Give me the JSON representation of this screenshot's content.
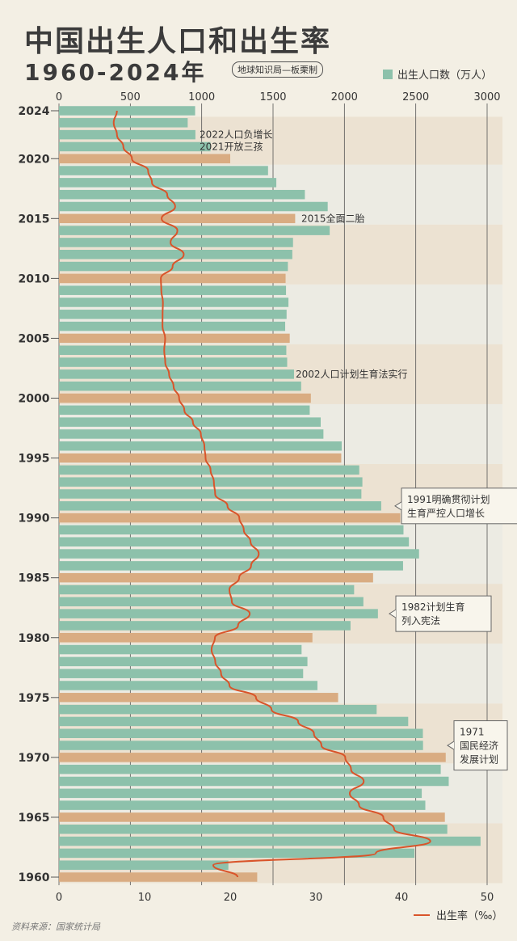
{
  "header": {
    "title": "中国出生人口和出生率",
    "subtitle": "1960-2024年",
    "credit": "地球知识局—板栗制",
    "legend_births": "出生人口数（万人）",
    "legend_rate": "出生率（‰）",
    "source": "资料来源：国家统计局"
  },
  "colors": {
    "background": "#f3efe4",
    "bar_normal": "#8dc1ab",
    "bar_highlight": "#d9ac82",
    "rate_line": "#d9542a",
    "band_light": "#ecebe3",
    "band_dark": "#ece2d2"
  },
  "chart_data": {
    "type": "bar",
    "orientation": "horizontal",
    "title": "中国出生人口和出生率",
    "years": [
      1960,
      1961,
      1962,
      1963,
      1964,
      1965,
      1966,
      1967,
      1968,
      1969,
      1970,
      1971,
      1972,
      1973,
      1974,
      1975,
      1976,
      1977,
      1978,
      1979,
      1980,
      1981,
      1982,
      1983,
      1984,
      1985,
      1986,
      1987,
      1988,
      1989,
      1990,
      1991,
      1992,
      1993,
      1994,
      1995,
      1996,
      1997,
      1998,
      1999,
      2000,
      2001,
      2002,
      2003,
      2004,
      2005,
      2006,
      2007,
      2008,
      2009,
      2010,
      2011,
      2012,
      2013,
      2014,
      2015,
      2016,
      2017,
      2018,
      2019,
      2020,
      2021,
      2022,
      2023,
      2024
    ],
    "highlight_years": [
      1960,
      1965,
      1970,
      1975,
      1980,
      1985,
      1990,
      1995,
      2000,
      2005,
      2010,
      2015,
      2020
    ],
    "series": [
      {
        "name": "出生人口数（万人）",
        "axis": "top",
        "values": [
          1389,
          1187,
          2491,
          2954,
          2721,
          2704,
          2567,
          2542,
          2731,
          2675,
          2710,
          2551,
          2550,
          2447,
          2226,
          1956,
          1811,
          1711,
          1741,
          1700,
          1776,
          2043,
          2235,
          2133,
          2068,
          2201,
          2411,
          2523,
          2452,
          2414,
          2391,
          2258,
          2119,
          2126,
          2104,
          1978,
          1981,
          1853,
          1834,
          1757,
          1765,
          1697,
          1647,
          1599,
          1593,
          1617,
          1585,
          1595,
          1608,
          1591,
          1588,
          1604,
          1635,
          1640,
          1897,
          1655,
          1883,
          1723,
          1523,
          1465,
          1200,
          1062,
          956,
          902,
          954
        ],
        "xlim": [
          0,
          3000
        ],
        "ticks": [
          0,
          500,
          1000,
          1500,
          2000,
          2500,
          3000
        ]
      },
      {
        "name": "出生率（‰）",
        "axis": "bottom",
        "values": [
          20.86,
          18.02,
          37.01,
          43.37,
          39.14,
          37.88,
          35.05,
          33.96,
          35.59,
          34.11,
          33.43,
          30.65,
          29.77,
          27.93,
          24.82,
          23.01,
          19.91,
          18.93,
          18.25,
          17.82,
          18.21,
          20.91,
          22.28,
          20.19,
          19.9,
          21.04,
          22.43,
          23.33,
          22.37,
          21.58,
          21.06,
          19.68,
          18.24,
          18.09,
          17.7,
          17.12,
          16.98,
          16.57,
          15.64,
          14.64,
          14.03,
          13.38,
          12.86,
          12.41,
          12.29,
          12.4,
          12.09,
          12.1,
          12.14,
          11.95,
          11.9,
          13.27,
          14.57,
          13.03,
          13.83,
          11.99,
          13.57,
          12.64,
          10.86,
          10.41,
          8.52,
          7.52,
          6.77,
          6.39,
          6.77
        ],
        "xlim": [
          0,
          50
        ],
        "ticks": [
          0,
          10,
          20,
          30,
          40,
          50
        ]
      }
    ],
    "y_tick_labels": [
      "1960",
      "1965",
      "1970",
      "1975",
      "1980",
      "1985",
      "1990",
      "1995",
      "2000",
      "2005",
      "2010",
      "2015",
      "2020",
      "2024"
    ],
    "annotations": [
      {
        "year": 2022,
        "text": "2022人口负增长"
      },
      {
        "year": 2021,
        "text": "2021开放三孩"
      },
      {
        "year": 2015,
        "text": "2015全面二胎"
      },
      {
        "year": 2002,
        "text": "2002人口计划生育法实行"
      },
      {
        "year": 1991,
        "text": "1991明确贯彻计划\n生育严控人口增长",
        "boxed": true
      },
      {
        "year": 1982,
        "text": "1982计划生育\n列入宪法",
        "boxed": true
      },
      {
        "year": 1971,
        "text": "1971\n国民经济\n发展计划",
        "boxed": true
      }
    ]
  }
}
